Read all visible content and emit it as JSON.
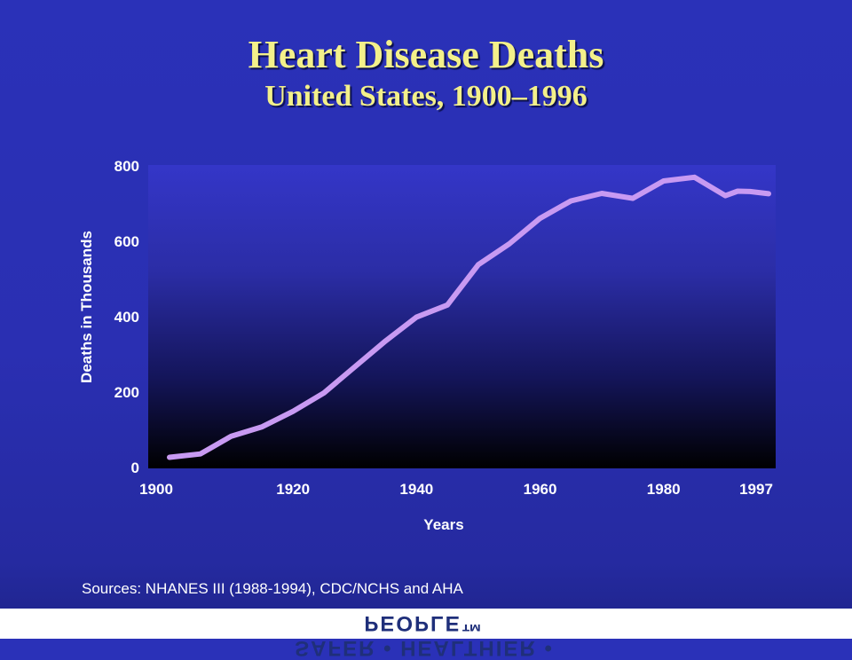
{
  "title": "Heart Disease Deaths",
  "subtitle": "United States, 1900–1996",
  "sources": "Sources: NHANES III (1988-1994), CDC/NCHS and AHA",
  "footer_logo": "SAFER • HEALTHIER • PEOPLE™",
  "colors": {
    "title": "#f3f08a",
    "line": "#c89af2",
    "background": "#2a31b8"
  },
  "chart_data": {
    "type": "line",
    "title": "Heart Disease Deaths",
    "subtitle": "United States, 1900–1996",
    "xlabel": "Years",
    "ylabel": "Deaths in Thousands",
    "xlim": [
      1900,
      1997
    ],
    "ylim": [
      0,
      800
    ],
    "xticks": [
      1900,
      1920,
      1940,
      1960,
      1980,
      1997
    ],
    "yticks": [
      0,
      200,
      400,
      600,
      800
    ],
    "grid": false,
    "series": [
      {
        "x": [
          1900,
          1905,
          1910,
          1915,
          1920,
          1925,
          1930,
          1935,
          1940,
          1945,
          1950,
          1955,
          1960,
          1965,
          1970,
          1975,
          1980,
          1985,
          1990,
          1992,
          1994,
          1997
        ],
        "values": [
          27,
          36,
          83,
          108,
          149,
          198,
          267,
          336,
          399,
          431,
          538,
          593,
          661,
          707,
          727,
          714,
          760,
          770,
          721,
          733,
          732,
          726
        ]
      }
    ]
  }
}
